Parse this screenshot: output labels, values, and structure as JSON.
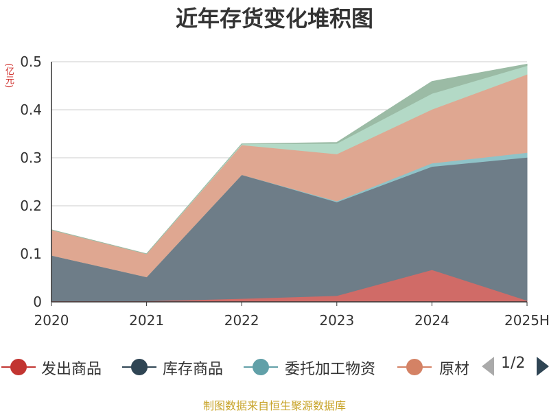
{
  "title": "近年存货变化堆积图",
  "unit": "(亿元)",
  "source": "制图数据来自恒生聚源数据库",
  "pager": "1/2",
  "legend": [
    {
      "label": "发出商品",
      "color": "#c23531"
    },
    {
      "label": "库存商品",
      "color": "#2f4554"
    },
    {
      "label": "委托加工物资",
      "color": "#61a0a8"
    },
    {
      "label": "原材料",
      "color": "#d48265"
    }
  ],
  "chart_data": {
    "type": "area",
    "stacked": true,
    "categories": [
      "2020",
      "2021",
      "2022",
      "2023",
      "2024",
      "2025H"
    ],
    "ylim": [
      0,
      0.5
    ],
    "yticks": [
      "0",
      "0.1",
      "0.2",
      "0.3",
      "0.4",
      "0.5"
    ],
    "grid": true,
    "legend_position": "bottom",
    "series": [
      {
        "name": "发出商品",
        "color": "#d06b67",
        "values": [
          0.002,
          0.002,
          0.007,
          0.013,
          0.067,
          0.003
        ]
      },
      {
        "name": "库存商品",
        "color": "#6e7d88",
        "values": [
          0.095,
          0.05,
          0.258,
          0.195,
          0.215,
          0.298
        ]
      },
      {
        "name": "委托加工物资",
        "color": "#8fc3c8",
        "values": [
          0,
          0,
          0,
          0.002,
          0.007,
          0.01
        ]
      },
      {
        "name": "原材料",
        "color": "#dfa791",
        "values": [
          0.053,
          0.048,
          0.062,
          0.098,
          0.112,
          0.163
        ]
      },
      {
        "name": "",
        "color": "#b3d9c6",
        "values": [
          0,
          0,
          0.002,
          0.022,
          0.033,
          0.018
        ]
      },
      {
        "name": "",
        "color": "#9bbba5",
        "values": [
          0,
          0,
          0,
          0.002,
          0.025,
          0.003
        ]
      }
    ]
  }
}
